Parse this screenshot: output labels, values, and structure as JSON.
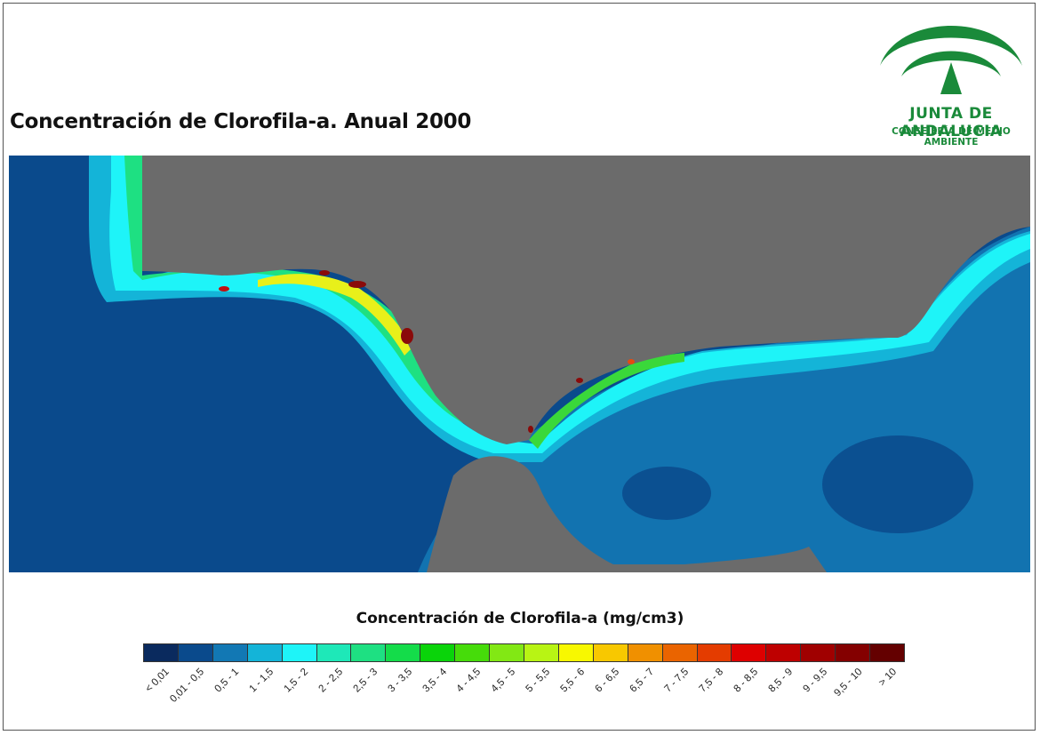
{
  "title": "Concentración de Clorofila-a. Anual 2000",
  "logo": {
    "name": "JUNTA DE ANDALUCIA",
    "subtitle": "CONSEJERÍA DE MEDIO AMBIENTE",
    "color": "#1a8a3a"
  },
  "map": {
    "land_color": "#6b6b6b",
    "open_ocean_color": "#0a3f7a",
    "coastal_colors": [
      "#1273b0",
      "#19b4e0",
      "#2ee8f2",
      "#28e6b4",
      "#35e07a",
      "#3ad83a",
      "#8cf02a",
      "#e8f01a",
      "#f5c00a",
      "#e64a10",
      "#8a0a0a"
    ]
  },
  "legend": {
    "title": "Concentración de Clorofila-a (mg/cm3)",
    "classes": [
      {
        "label": "< 0,01",
        "color": "#0a2a5e"
      },
      {
        "label": "0,01 - 0,5",
        "color": "#0a4a8c"
      },
      {
        "label": "0,5 - 1",
        "color": "#1278b4"
      },
      {
        "label": "1 - 1,5",
        "color": "#14b4d8"
      },
      {
        "label": "1,5 - 2",
        "color": "#1ef4f8"
      },
      {
        "label": "2 - 2,5",
        "color": "#1ee8b8"
      },
      {
        "label": "2,5 - 3",
        "color": "#1ee082"
      },
      {
        "label": "3 - 3,5",
        "color": "#14dc4a"
      },
      {
        "label": "3,5 - 4",
        "color": "#0ad40a"
      },
      {
        "label": "4 - 4,5",
        "color": "#46dc0a"
      },
      {
        "label": "4,5 - 5",
        "color": "#82e814"
      },
      {
        "label": "5 - 5,5",
        "color": "#b8f414"
      },
      {
        "label": "5,5 - 6",
        "color": "#f8f800"
      },
      {
        "label": "6 - 6,5",
        "color": "#f8c800"
      },
      {
        "label": "6,5 - 7",
        "color": "#f09000"
      },
      {
        "label": "7 - 7,5",
        "color": "#ea6400"
      },
      {
        "label": "7,5 - 8",
        "color": "#e43c00"
      },
      {
        "label": "8 - 8,5",
        "color": "#de0000"
      },
      {
        "label": "8,5 - 9",
        "color": "#be0000"
      },
      {
        "label": "9 - 9,5",
        "color": "#a00000"
      },
      {
        "label": "9,5 - 10",
        "color": "#840000"
      },
      {
        "label": "> 10",
        "color": "#640000"
      }
    ]
  }
}
